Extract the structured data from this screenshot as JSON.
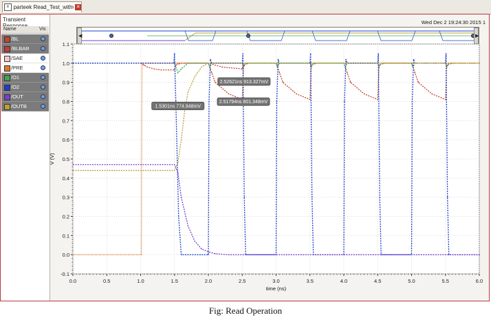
{
  "tab": {
    "label": "parteek Read_Test_withvariP...",
    "icon": "document-icon",
    "close_icon": "close-icon"
  },
  "panel": {
    "title": "Transient Response",
    "col_name": "Name",
    "col_vis": "Vis",
    "signals": [
      {
        "name": "/BL",
        "color": "#c0462a",
        "shaded": true
      },
      {
        "name": "/BLBAR",
        "color": "#c43c3c",
        "shaded": true
      },
      {
        "name": "/SAE",
        "color": "#f4c6c6",
        "shaded": false
      },
      {
        "name": "/PRE",
        "color": "#e07a2a",
        "shaded": false
      },
      {
        "name": "/O1",
        "color": "#3fa64e",
        "shaded": true
      },
      {
        "name": "/O2",
        "color": "#1c3fc8",
        "shaded": true
      },
      {
        "name": "/OUT",
        "color": "#7a3fd0",
        "shaded": true
      },
      {
        "name": "/OUTB",
        "color": "#b6a23a",
        "shaded": true
      }
    ]
  },
  "timestamp": "Wed Dec 2 19:24:30 2015  1",
  "chart_data": {
    "type": "line",
    "xlabel": "time (ns)",
    "ylabel": "V (V)",
    "xlim": [
      0.0,
      6.0
    ],
    "ylim": [
      -0.1,
      1.1
    ],
    "xticks": [
      "0.0",
      "0.5",
      "1.0",
      "1.5",
      "2.0",
      "2.5",
      "3.0",
      "3.5",
      "4.0",
      "4.5",
      "5.0",
      "5.5",
      "6.0"
    ],
    "yticks": [
      "-0.1",
      "0.0",
      "0.1",
      "0.2",
      "0.3",
      "0.4",
      "0.5",
      "0.6",
      "0.7",
      "0.8",
      "0.9",
      "1.0",
      "1.1"
    ],
    "grid": true,
    "series": [
      {
        "name": "/BL",
        "color": "#c0462a",
        "x": [
          0,
          1.0,
          1.05,
          1.1,
          1.2,
          1.3,
          1.5,
          1.52,
          1.6,
          2.0,
          2.05,
          2.1,
          2.3,
          2.5,
          2.52,
          2.6,
          3.0,
          3.05,
          3.1,
          3.3,
          3.5,
          3.52,
          3.6,
          4.0,
          4.05,
          4.1,
          4.3,
          4.5,
          4.52,
          4.6,
          5.0,
          5.05,
          5.1,
          5.3,
          5.5,
          5.52,
          5.6,
          6.0
        ],
        "y": [
          1.0,
          1.0,
          0.99,
          0.98,
          0.97,
          0.965,
          0.965,
          0.99,
          1.0,
          1.0,
          0.95,
          0.9,
          0.84,
          0.81,
          0.99,
          1.0,
          1.0,
          0.95,
          0.9,
          0.84,
          0.81,
          0.99,
          1.0,
          1.0,
          0.95,
          0.9,
          0.84,
          0.81,
          0.99,
          1.0,
          1.0,
          0.95,
          0.9,
          0.84,
          0.81,
          0.99,
          1.0,
          1.0
        ]
      },
      {
        "name": "/BLBAR",
        "color": "#c43c3c",
        "x": [
          0,
          2.0,
          2.2,
          2.5,
          2.52,
          3.0,
          6.0
        ],
        "y": [
          1.0,
          1.0,
          0.98,
          0.97,
          1.0,
          1.0,
          1.0
        ]
      },
      {
        "name": "/PRE",
        "color": "#e07a2a",
        "x": [
          0,
          1.01,
          1.02,
          6.0
        ],
        "y": [
          0.0,
          0.0,
          1.0,
          1.0
        ]
      },
      {
        "name": "/O1",
        "color": "#3fa64e",
        "x": [
          0,
          1.5,
          1.55,
          1.6,
          1.7,
          2.0,
          2.02,
          2.05,
          2.5,
          2.52,
          2.55,
          3.0,
          3.02,
          3.05,
          3.5,
          3.52,
          3.55,
          4.0,
          4.02,
          4.05,
          4.5,
          4.52,
          4.55,
          5.0,
          5.02,
          5.05,
          5.5,
          5.52,
          5.55,
          6.0
        ],
        "y": [
          1.0,
          1.0,
          0.95,
          0.97,
          1.0,
          1.0,
          0.98,
          1.0,
          1.0,
          0.98,
          1.0,
          1.0,
          0.98,
          1.0,
          1.0,
          0.98,
          1.0,
          1.0,
          0.98,
          1.0,
          1.0,
          0.98,
          1.0,
          1.0,
          0.98,
          1.0,
          1.0,
          0.98,
          1.0,
          1.0
        ]
      },
      {
        "name": "/O2",
        "color": "#1c3fc8",
        "x": [
          0,
          1.49,
          1.5,
          1.52,
          1.56,
          1.6,
          2.0,
          2.01,
          2.03,
          2.05,
          2.5,
          2.51,
          2.53,
          2.55,
          3.0,
          3.01,
          3.03,
          3.05,
          3.5,
          3.51,
          3.53,
          3.55,
          4.0,
          4.01,
          4.03,
          4.05,
          4.5,
          4.51,
          4.53,
          4.55,
          5.0,
          5.01,
          5.03,
          5.05,
          5.5,
          5.51,
          5.53,
          5.55,
          6.0
        ],
        "y": [
          1.0,
          1.0,
          1.05,
          0.8,
          0.2,
          0.0,
          0.0,
          0.8,
          1.02,
          1.0,
          1.0,
          1.05,
          0.3,
          0.0,
          0.0,
          0.8,
          1.02,
          1.0,
          1.0,
          1.05,
          0.3,
          0.0,
          0.0,
          0.8,
          1.02,
          1.0,
          1.0,
          1.05,
          0.3,
          0.0,
          0.0,
          0.8,
          1.02,
          1.0,
          1.0,
          1.05,
          0.3,
          0.0,
          0.0
        ]
      },
      {
        "name": "/OUT",
        "color": "#7a3fd0",
        "x": [
          0,
          1.5,
          1.55,
          1.6,
          1.7,
          1.8,
          1.9,
          2.0,
          2.1,
          2.3,
          6.0
        ],
        "y": [
          0.47,
          0.47,
          0.43,
          0.3,
          0.15,
          0.07,
          0.03,
          0.015,
          0.005,
          0.0,
          0.0
        ]
      },
      {
        "name": "/OUTB",
        "color": "#b6a23a",
        "x": [
          0,
          1.5,
          1.55,
          1.6,
          1.65,
          1.7,
          1.8,
          1.9,
          2.0,
          6.0
        ],
        "y": [
          0.44,
          0.44,
          0.48,
          0.6,
          0.75,
          0.85,
          0.93,
          0.98,
          1.0,
          1.0
        ]
      }
    ],
    "markers": [
      {
        "label": "1.5301ns  774.948mV",
        "x": 1.53,
        "y": 0.775
      },
      {
        "label": "2.52621ns  913.327mV",
        "x": 2.526,
        "y": 0.913
      },
      {
        "label": "2.51794ns  801.348mV",
        "x": 2.518,
        "y": 0.801
      }
    ]
  },
  "caption": "Fig: Read Operation"
}
